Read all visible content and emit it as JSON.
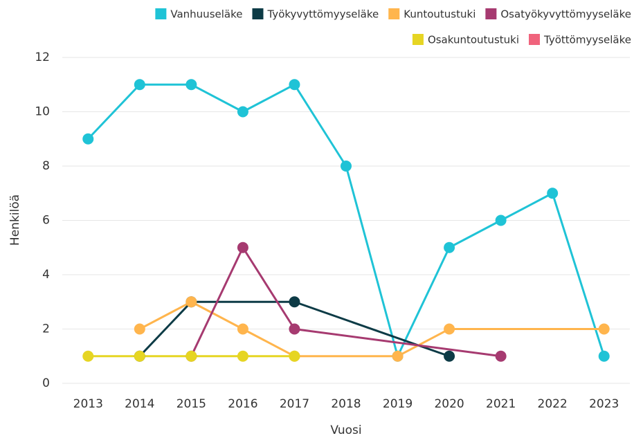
{
  "chart_data": {
    "type": "line",
    "x_label": "Vuosi",
    "y_label": "Henkilöä",
    "categories": [
      "2013",
      "2014",
      "2015",
      "2016",
      "2017",
      "2018",
      "2019",
      "2020",
      "2021",
      "2022",
      "2023"
    ],
    "series": [
      {
        "name": "Vanhuuseläke",
        "color": "#1fc3d6",
        "values": [
          9,
          11,
          11,
          10,
          11,
          8,
          1,
          5,
          6,
          7,
          1
        ]
      },
      {
        "name": "Työkyvyttömyyseläke",
        "color": "#0d3b46",
        "values": [
          null,
          1,
          3,
          null,
          3,
          null,
          null,
          1,
          null,
          null,
          null
        ]
      },
      {
        "name": "Kuntoutustuki",
        "color": "#ffb54d",
        "values": [
          null,
          2,
          3,
          2,
          1,
          null,
          1,
          2,
          null,
          null,
          2
        ]
      },
      {
        "name": "Osatyökyvyttömyyseläke",
        "color": "#a63a70",
        "values": [
          null,
          null,
          1,
          5,
          2,
          null,
          null,
          null,
          1,
          null,
          null
        ]
      },
      {
        "name": "Osakuntoutustuki",
        "color": "#e6d523",
        "values": [
          1,
          1,
          1,
          1,
          1,
          null,
          null,
          null,
          null,
          null,
          null
        ]
      },
      {
        "name": "Työttömyyseläke",
        "color": "#f0637c",
        "values": [
          null,
          null,
          null,
          null,
          null,
          null,
          null,
          null,
          null,
          null,
          null
        ]
      }
    ],
    "ylim": [
      0,
      12
    ],
    "yticks": [
      0,
      2,
      4,
      6,
      8,
      10,
      12
    ],
    "grid": true,
    "connect_nulls": true,
    "legend": "top-right"
  }
}
